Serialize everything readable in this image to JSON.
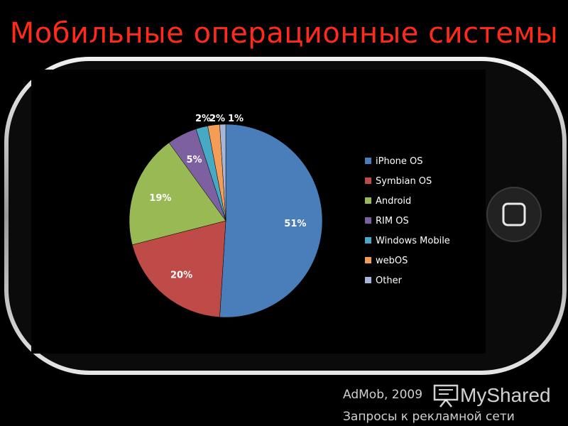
{
  "title": "Мобильные операционные системы",
  "chart_data": {
    "type": "pie",
    "title": "",
    "slices": [
      {
        "name": "iPhone OS",
        "value": 51,
        "label": "51%",
        "color": "#4a7ebb"
      },
      {
        "name": "Symbian OS",
        "value": 20,
        "label": "20%",
        "color": "#be4b48"
      },
      {
        "name": "Android",
        "value": 19,
        "label": "19%",
        "color": "#98b954"
      },
      {
        "name": "RIM OS",
        "value": 5,
        "label": "5%",
        "color": "#7d60a0"
      },
      {
        "name": "Windows Mobile",
        "value": 2,
        "label": "2%",
        "color": "#46aac5"
      },
      {
        "name": "webOS",
        "value": 2,
        "label": "2%",
        "color": "#f59d56"
      },
      {
        "name": "Other",
        "value": 1,
        "label": "1%",
        "color": "#a5b6d8"
      }
    ],
    "legend": {
      "position": "right"
    }
  },
  "footer": {
    "source": "AdMob, 2009",
    "description": "Запросы к рекламной сети"
  },
  "watermark": {
    "text": "MyShared"
  }
}
